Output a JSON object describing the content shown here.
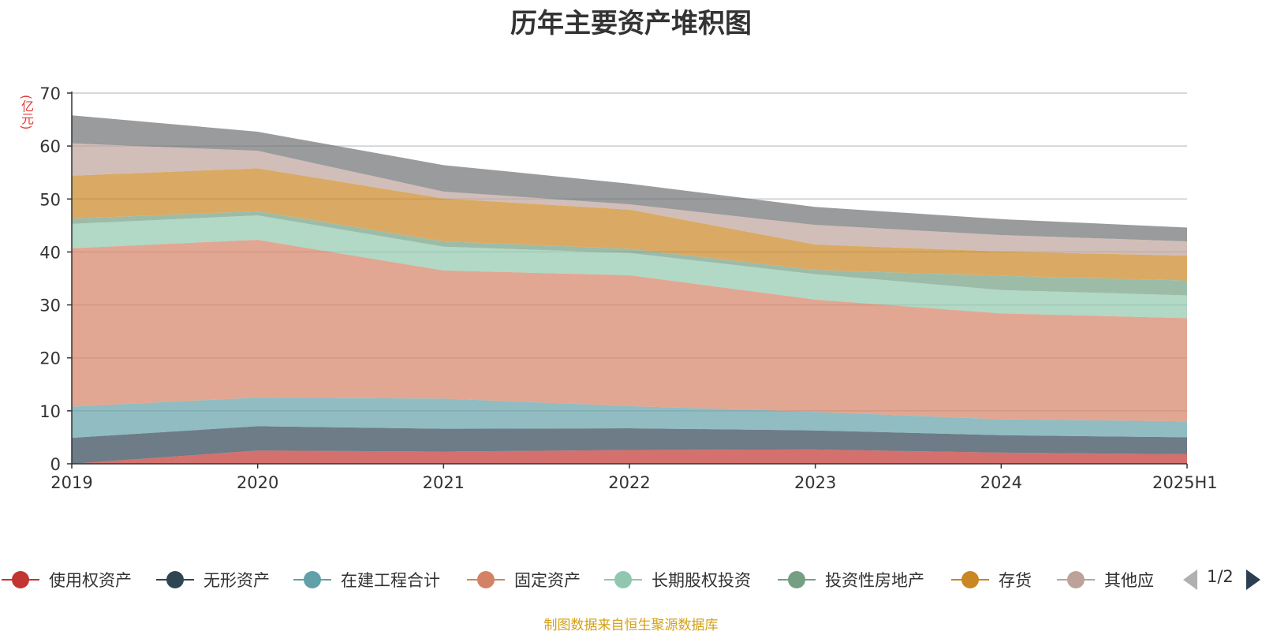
{
  "header": {
    "title": "历年主要资产堆积图"
  },
  "unit": "(亿元)",
  "legend": {
    "items": [
      {
        "label": "使用权资产",
        "color": "#c23531"
      },
      {
        "label": "无形资产",
        "color": "#2f4554"
      },
      {
        "label": "在建工程合计",
        "color": "#61a0a8"
      },
      {
        "label": "固定资产",
        "color": "#d48265"
      },
      {
        "label": "长期股权投资",
        "color": "#91c7ae"
      },
      {
        "label": "投资性房地产",
        "color": "#749f83"
      },
      {
        "label": "存货",
        "color": "#ca8622"
      },
      {
        "label": "其他应",
        "color": "#bda29a"
      }
    ],
    "pager": "1/2"
  },
  "footer": {
    "source": "制图数据来自恒生聚源数据库"
  },
  "chart_data": {
    "type": "area",
    "stacked": true,
    "title": "历年主要资产堆积图",
    "ylabel": "(亿元)",
    "ylim": [
      0,
      70
    ],
    "yticks": [
      "0",
      "10",
      "20",
      "30",
      "40",
      "50",
      "60",
      "70"
    ],
    "categories": [
      "2019",
      "2020",
      "2021",
      "2022",
      "2023",
      "2024",
      "2025H1"
    ],
    "grid": true,
    "legend_position": "bottom",
    "series": [
      {
        "name": "使用权资产",
        "color": "#c23531",
        "values": [
          0.0,
          2.5,
          2.3,
          2.6,
          2.7,
          2.1,
          1.8
        ]
      },
      {
        "name": "无形资产",
        "color": "#2f4554",
        "values": [
          4.9,
          4.6,
          4.3,
          4.1,
          3.6,
          3.3,
          3.2
        ]
      },
      {
        "name": "在建工程合计",
        "color": "#61a0a8",
        "values": [
          5.9,
          5.4,
          5.7,
          4.2,
          3.5,
          3.0,
          3.0
        ]
      },
      {
        "name": "固定资产",
        "color": "#d48265",
        "values": [
          29.9,
          29.8,
          24.2,
          24.7,
          21.2,
          20.0,
          19.5
        ]
      },
      {
        "name": "长期股权投资",
        "color": "#91c7ae",
        "values": [
          4.6,
          4.6,
          4.5,
          4.2,
          4.8,
          4.4,
          4.3
        ]
      },
      {
        "name": "投资性房地产",
        "color": "#749f83",
        "values": [
          1.0,
          0.8,
          1.0,
          0.8,
          0.8,
          2.7,
          2.8
        ]
      },
      {
        "name": "存货",
        "color": "#ca8622",
        "values": [
          8.1,
          8.1,
          8.1,
          7.4,
          4.8,
          4.6,
          4.7
        ]
      },
      {
        "name": "其他应",
        "color": "#bda29a",
        "values": [
          6.1,
          3.3,
          1.3,
          1.0,
          3.7,
          3.1,
          2.7
        ]
      },
      {
        "name": "",
        "color": "#6e7074",
        "values": [
          5.3,
          3.6,
          5.0,
          3.9,
          3.4,
          3.0,
          2.6
        ]
      }
    ]
  }
}
